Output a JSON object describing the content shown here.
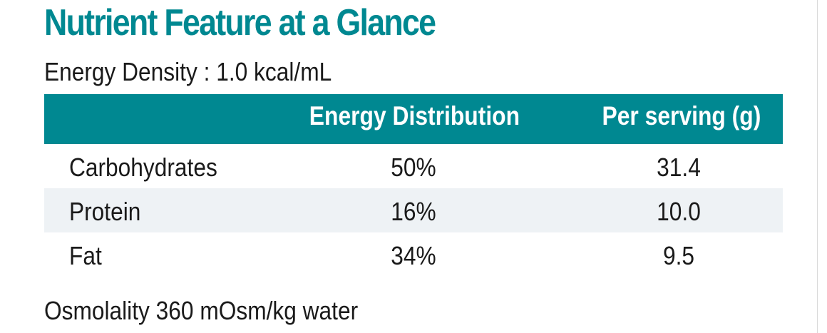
{
  "title": "Nutrient Feature at a Glance",
  "energy_density": "Energy Density  : 1.0 kcal/mL",
  "table": {
    "headers": {
      "nutrient": "",
      "energy_distribution": "Energy Distribution",
      "per_serving": "Per serving (g)"
    },
    "rows": [
      {
        "nutrient": "Carbohydrates",
        "energy_distribution": "50%",
        "per_serving": "31.4"
      },
      {
        "nutrient": "Protein",
        "energy_distribution": "16%",
        "per_serving": "10.0"
      },
      {
        "nutrient": "Fat",
        "energy_distribution": "34%",
        "per_serving": "9.5"
      }
    ]
  },
  "osmolality": "Osmolality 360 mOsm/kg water",
  "colors": {
    "accent": "#008891",
    "row_shade": "#eef2f5",
    "text": "#1a1a1a"
  }
}
